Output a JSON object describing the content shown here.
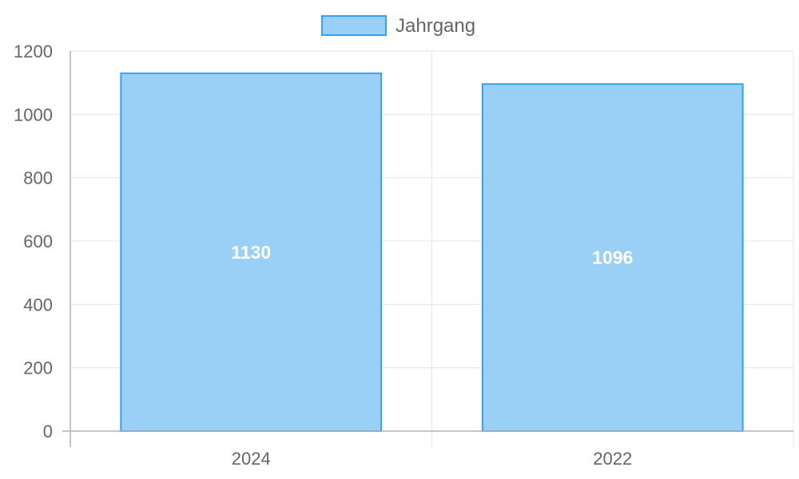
{
  "chart_data": {
    "type": "bar",
    "categories": [
      "2024",
      "2022"
    ],
    "series": [
      {
        "name": "Jahrgang",
        "values": [
          1130,
          1096
        ]
      }
    ],
    "ylim": [
      0,
      1200
    ],
    "yticks": [
      0,
      200,
      400,
      600,
      800,
      1000,
      1200
    ],
    "grid": true,
    "legend": "top-center",
    "data_labels": [
      "1130",
      "1096"
    ],
    "colors": {
      "bar_fill": "#9ad0f5",
      "bar_stroke": "#36a2eb",
      "grid": "#e5e5e5",
      "axis": "#b3b3b3",
      "text": "#666666",
      "data_label": "#ffffff"
    }
  }
}
